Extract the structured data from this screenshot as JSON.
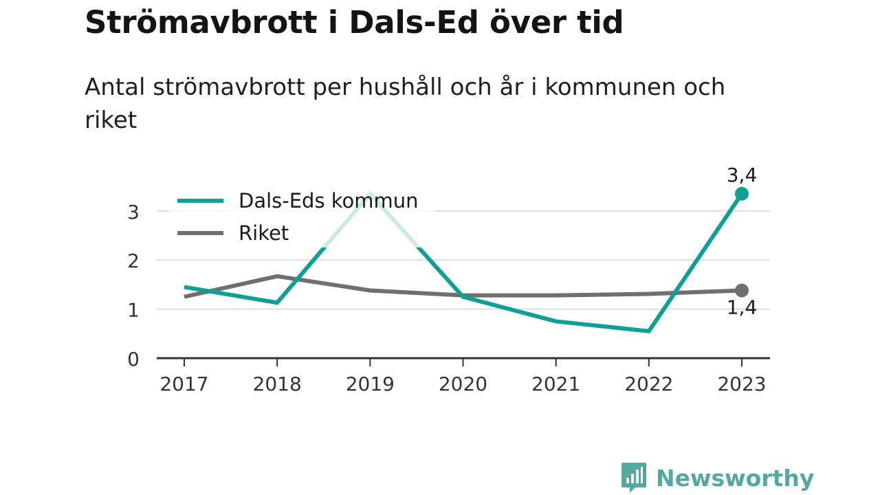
{
  "title": "Strömavbrott i Dals-Ed över tid",
  "subtitle": "Antal strömavbrott per hushåll och år i kommunen och riket",
  "brand": "Newsworthy",
  "colors": {
    "kommun": "#109f94",
    "riket": "#6f6e73",
    "grid": "#dcdcdc",
    "axis": "#333333",
    "brand": "#55a8a0"
  },
  "chart_data": {
    "type": "line",
    "title": "Strömavbrott i Dals-Ed över tid",
    "subtitle": "Antal strömavbrott per hushåll och år i kommunen och riket",
    "categories": [
      "2017",
      "2018",
      "2019",
      "2020",
      "2021",
      "2022",
      "2023"
    ],
    "series": [
      {
        "name": "Dals-Eds kommun",
        "values": [
          1.45,
          1.13,
          3.35,
          1.25,
          0.75,
          0.55,
          3.35
        ]
      },
      {
        "name": "Riket",
        "values": [
          1.25,
          1.67,
          1.38,
          1.28,
          1.28,
          1.31,
          1.38
        ]
      }
    ],
    "end_labels": [
      "3,4",
      "1,4"
    ],
    "yticks": [
      "0",
      "1",
      "2",
      "3"
    ],
    "ylim": [
      0,
      3.6
    ],
    "xlabel": "",
    "ylabel": "",
    "grid": true,
    "legend": "top-left"
  }
}
